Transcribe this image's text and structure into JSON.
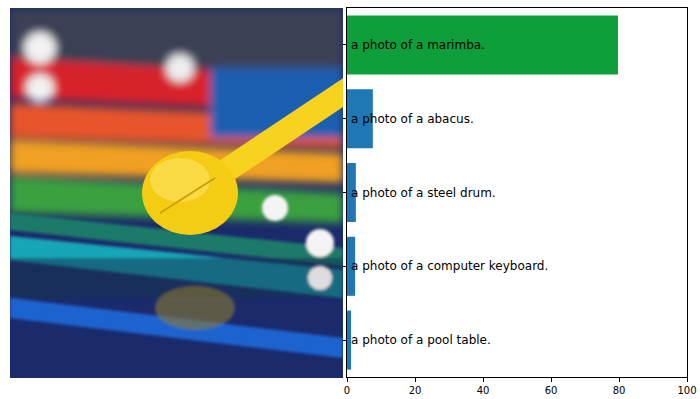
{
  "chart_data": {
    "type": "bar",
    "orientation": "horizontal",
    "categories": [
      "a photo of a marimba.",
      "a photo of a abacus.",
      "a photo of a steel drum.",
      "a photo of a computer keyboard.",
      "a photo of a pool table."
    ],
    "values": [
      79.7,
      7.6,
      2.6,
      2.4,
      1.2
    ],
    "colors": [
      "#0e9f3a",
      "#1f77b4",
      "#1f77b4",
      "#1f77b4",
      "#1f77b4"
    ],
    "xlim": [
      0,
      100
    ],
    "xticks": [
      0,
      20,
      40,
      60,
      80,
      100
    ],
    "tick_labels": "x",
    "grid": false
  }
}
